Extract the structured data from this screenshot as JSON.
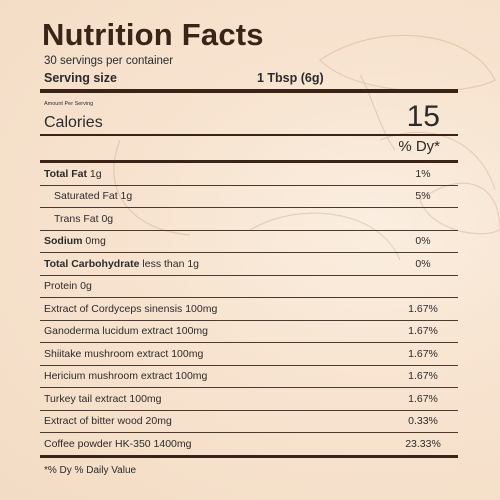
{
  "title": "Nutrition Facts",
  "servings_per_container": "30 servings per container",
  "serving_size": {
    "label": "Serving size",
    "value": "1 Tbsp (6g)"
  },
  "amount_per_serving": "Amount Per Serving",
  "calories": {
    "label": "Calories",
    "value": "15"
  },
  "dv_header": "% Dy*",
  "rows": [
    {
      "bold": "Total Fat",
      "text": " 1g",
      "pct": "1%",
      "indent": false
    },
    {
      "bold": "",
      "text": "Saturated Fat 1g",
      "pct": "5%",
      "indent": true
    },
    {
      "bold": "",
      "text": "Trans Fat 0g",
      "pct": "",
      "indent": true
    },
    {
      "bold": "Sodium",
      "text": " 0mg",
      "pct": "0%",
      "indent": false
    },
    {
      "bold": "Total Carbohydrate",
      "text": " less than 1g",
      "pct": "0%",
      "indent": false
    },
    {
      "bold": "",
      "text": "Protein 0g",
      "pct": "",
      "indent": false
    },
    {
      "bold": "",
      "text": "Extract of Cordyceps sinensis 100mg",
      "pct": "1.67%",
      "indent": false
    },
    {
      "bold": "",
      "text": "Ganoderma lucidum extract 100mg",
      "pct": "1.67%",
      "indent": false
    },
    {
      "bold": "",
      "text": "Shiitake mushroom extract 100mg",
      "pct": "1.67%",
      "indent": false
    },
    {
      "bold": "",
      "text": "Hericium mushroom extract 100mg",
      "pct": "1.67%",
      "indent": false
    },
    {
      "bold": "",
      "text": "Turkey tail extract 100mg",
      "pct": "1.67%",
      "indent": false
    },
    {
      "bold": "",
      "text": "Extract of bitter wood 20mg",
      "pct": "0.33%",
      "indent": false
    },
    {
      "bold": "",
      "text": "Coffee powder HK-350 1400mg",
      "pct": "23.33%",
      "indent": false
    }
  ],
  "footnote": "*% Dy % Daily Value",
  "colors": {
    "text_dark": "#3a2418",
    "background": "#f7e3cf"
  }
}
